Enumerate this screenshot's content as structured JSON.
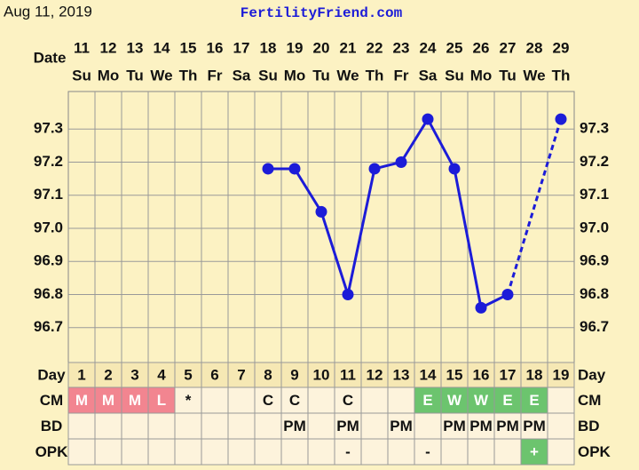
{
  "chart_data": {
    "type": "line",
    "title": "Aug 11, 2019",
    "subtitle": "FertilityFriend.com",
    "date_label": "Date",
    "dates": [
      11,
      12,
      13,
      14,
      15,
      16,
      17,
      18,
      19,
      20,
      21,
      22,
      23,
      24,
      25,
      26,
      27,
      28,
      29
    ],
    "weekdays": [
      "Su",
      "Mo",
      "Tu",
      "We",
      "Th",
      "Fr",
      "Sa",
      "Su",
      "Mo",
      "Tu",
      "We",
      "Th",
      "Fr",
      "Sa",
      "Su",
      "Mo",
      "Tu",
      "We",
      "Th"
    ],
    "series": [
      {
        "color": "#1c1cd8",
        "values": [
          null,
          null,
          null,
          null,
          null,
          null,
          null,
          97.18,
          97.18,
          97.05,
          96.8,
          97.18,
          97.2,
          97.33,
          97.18,
          96.76,
          96.8,
          null,
          97.33
        ]
      }
    ],
    "ylim": [
      96.6,
      97.4
    ],
    "yticks": [
      97.3,
      97.2,
      97.1,
      {
        "value": 97,
        "label": "97.0"
      },
      96.9,
      96.8,
      96.7
    ],
    "grid": true,
    "rows": [
      {
        "label": "Day",
        "cells": [
          1,
          2,
          3,
          4,
          5,
          6,
          7,
          8,
          9,
          10,
          11,
          12,
          13,
          14,
          15,
          16,
          17,
          18,
          19
        ],
        "colors": null
      },
      {
        "label": "CM",
        "cells": [
          "M",
          "M",
          "M",
          "L",
          "*",
          null,
          null,
          "C",
          "C",
          null,
          "C",
          null,
          null,
          "E",
          "W",
          "W",
          "E",
          "E",
          null
        ],
        "colors": [
          "#f28590",
          "#f28590",
          "#f28590",
          "#f28590",
          null,
          null,
          null,
          null,
          null,
          null,
          null,
          null,
          null,
          "#6cc46e",
          "#6cc46e",
          "#6cc46e",
          "#6cc46e",
          "#6cc46e",
          null
        ]
      },
      {
        "label": "BD",
        "cells": [
          null,
          null,
          null,
          null,
          null,
          null,
          null,
          null,
          "PM",
          null,
          "PM",
          null,
          "PM",
          null,
          "PM",
          "PM",
          "PM",
          "PM",
          null
        ],
        "colors": null
      },
      {
        "label": "OPK",
        "cells": [
          null,
          null,
          null,
          null,
          null,
          null,
          null,
          null,
          null,
          null,
          "-",
          null,
          null,
          "-",
          null,
          null,
          null,
          "+",
          null
        ],
        "colors": [
          null,
          null,
          null,
          null,
          null,
          null,
          null,
          null,
          null,
          null,
          null,
          null,
          null,
          null,
          null,
          null,
          null,
          "#6cc46e",
          null
        ]
      }
    ]
  }
}
